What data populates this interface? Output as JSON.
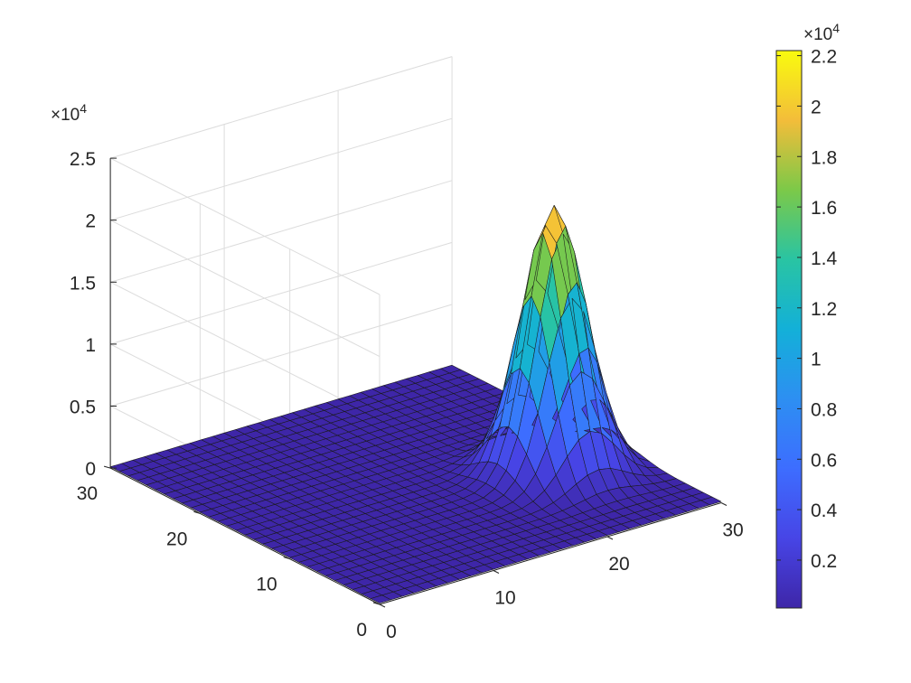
{
  "chart_data": {
    "type": "surface",
    "title": "",
    "xlabel": "",
    "ylabel": "",
    "zlabel": "",
    "grid": true,
    "x_range": [
      0,
      30
    ],
    "y_range": [
      0,
      30
    ],
    "z_range": [
      0,
      25000
    ],
    "x_ticks": [
      "0",
      "10",
      "20",
      "30"
    ],
    "y_ticks": [
      "0",
      "10",
      "20",
      "30"
    ],
    "z_ticks": [
      "0",
      "0.5",
      "1",
      "1.5",
      "2",
      "2.5"
    ],
    "z_multiplier": {
      "base": "×10",
      "power": "4"
    },
    "surface": {
      "description_values": {
        "grid_size": 31,
        "peak_x": 24,
        "peak_y": 11,
        "peak_z": 21500,
        "sigma_x": 2.3,
        "sigma_y": 2.3,
        "peak_position_x": 24,
        "peak_position_y": 11
      }
    },
    "colorbar": {
      "colormap": "parula",
      "range": [
        100,
        22200
      ],
      "ticks": [
        "0.2",
        "0.4",
        "0.6",
        "0.8",
        "1",
        "1.2",
        "1.4",
        "1.6",
        "1.8",
        "2",
        "2.2"
      ],
      "multiplier": {
        "base": "×10",
        "power": "4"
      }
    }
  }
}
